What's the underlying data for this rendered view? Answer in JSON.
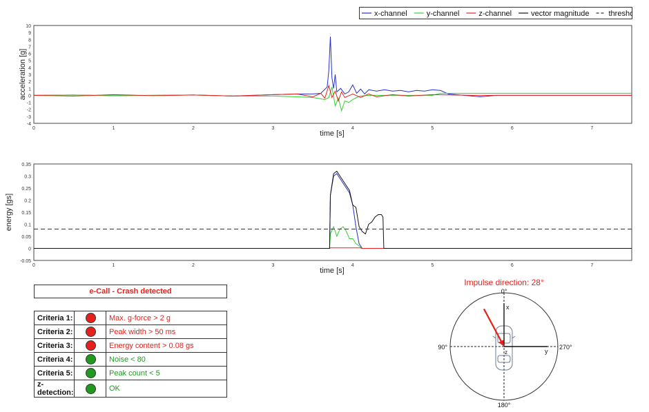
{
  "legend": {
    "items": [
      {
        "label": "x-channel",
        "color": "#2430c8",
        "style": "solid"
      },
      {
        "label": "y-channel",
        "color": "#2fd12f",
        "style": "solid"
      },
      {
        "label": "z-channel",
        "color": "#e4211c",
        "style": "solid"
      },
      {
        "label": "vector magnitude",
        "color": "#111111",
        "style": "solid"
      },
      {
        "label": "threshold",
        "color": "#333333",
        "style": "dashed"
      }
    ]
  },
  "chart_data": [
    {
      "type": "line",
      "xlabel": "time [s]",
      "ylabel": "acceleration [g]",
      "xlim": [
        0,
        7.5
      ],
      "ylim": [
        -4,
        10
      ],
      "xticks": [
        0,
        1,
        2,
        3,
        4,
        5,
        6,
        7
      ],
      "yticks": [
        -4,
        -3,
        -2,
        -1,
        0,
        1,
        2,
        3,
        4,
        5,
        6,
        7,
        8,
        9,
        10
      ],
      "grid": true,
      "series": [
        {
          "name": "x-channel",
          "color": "#2430c8",
          "x": [
            0,
            0.5,
            1,
            1.5,
            2,
            2.5,
            3,
            3.3,
            3.5,
            3.6,
            3.68,
            3.7,
            3.72,
            3.74,
            3.76,
            3.78,
            3.8,
            3.85,
            3.9,
            3.95,
            4.0,
            4.05,
            4.1,
            4.15,
            4.2,
            4.3,
            4.4,
            4.5,
            4.6,
            4.7,
            4.8,
            4.9,
            5.0,
            5.1,
            5.2,
            5.4,
            5.6,
            5.8,
            6.0,
            6.5,
            7.0,
            7.5
          ],
          "y": [
            0,
            0.05,
            -0.05,
            0,
            0.05,
            -0.1,
            0.1,
            0.2,
            0.2,
            0.3,
            1.2,
            3.5,
            8.4,
            2.5,
            1.0,
            3.0,
            0.5,
            1.0,
            0.2,
            0.5,
            1.5,
            0.3,
            0.9,
            0.2,
            0.8,
            0.6,
            0.8,
            0.6,
            0.7,
            0.5,
            0.7,
            0.6,
            0.8,
            0.7,
            0.2,
            0.0,
            -0.2,
            0.0,
            0.0,
            0.0,
            0.0,
            0.0
          ]
        },
        {
          "name": "y-channel",
          "color": "#2fd12f",
          "x": [
            0,
            0.5,
            1,
            1.5,
            2,
            2.5,
            3,
            3.3,
            3.5,
            3.6,
            3.65,
            3.7,
            3.74,
            3.78,
            3.82,
            3.86,
            3.9,
            3.95,
            4.0,
            4.05,
            4.1,
            4.2,
            4.3,
            4.5,
            5.0,
            5.1,
            5.2,
            5.5,
            6.0,
            6.5,
            7.0,
            7.5
          ],
          "y": [
            0,
            0.05,
            -0.05,
            0,
            0.05,
            -0.1,
            -0.1,
            -0.2,
            -0.3,
            -0.5,
            -0.6,
            -0.3,
            1.2,
            -1.5,
            -0.4,
            -2.2,
            -0.8,
            -1.0,
            -0.6,
            -0.3,
            -0.1,
            0.0,
            0.0,
            0.0,
            0.0,
            0.3,
            0.3,
            0.3,
            0.3,
            0.3,
            0.3,
            0.3
          ]
        },
        {
          "name": "z-channel",
          "color": "#e4211c",
          "x": [
            0,
            0.5,
            1,
            1.5,
            2,
            2.5,
            3,
            3.3,
            3.5,
            3.6,
            3.65,
            3.7,
            3.74,
            3.78,
            3.82,
            3.86,
            3.9,
            4.0,
            4.1,
            4.2,
            4.3,
            4.5,
            4.7,
            5.0,
            5.5,
            6.0,
            6.5,
            7.0,
            7.5
          ],
          "y": [
            0,
            -0.1,
            0.1,
            -0.05,
            0.05,
            -0.1,
            0.1,
            0.2,
            -0.2,
            0.3,
            -0.4,
            1.4,
            -0.3,
            0.6,
            -0.8,
            0.5,
            -0.3,
            0.2,
            -0.3,
            0.2,
            -0.2,
            0.1,
            -0.1,
            0.1,
            0.0,
            0.0,
            0.0,
            0.0,
            0.0
          ]
        }
      ]
    },
    {
      "type": "line",
      "xlabel": "time [s]",
      "ylabel": "energy [gs]",
      "xlim": [
        0,
        7.5
      ],
      "ylim": [
        -0.05,
        0.35
      ],
      "xticks": [
        0,
        1,
        2,
        3,
        4,
        5,
        6,
        7
      ],
      "yticks": [
        -0.05,
        0,
        0.05,
        0.1,
        0.15,
        0.2,
        0.25,
        0.3,
        0.35
      ],
      "grid": true,
      "series": [
        {
          "name": "x-channel",
          "color": "#2430c8",
          "x": [
            0,
            3.71,
            3.72,
            3.76,
            3.8,
            3.84,
            3.88,
            3.92,
            3.96,
            4.0,
            4.04,
            4.08,
            4.12,
            4.16,
            7.5
          ],
          "y": [
            0,
            0,
            0.22,
            0.3,
            0.31,
            0.29,
            0.27,
            0.25,
            0.23,
            0.18,
            0.09,
            0.02,
            0.0,
            0.0,
            0.0
          ]
        },
        {
          "name": "y-channel",
          "color": "#2fd12f",
          "x": [
            0,
            3.71,
            3.72,
            3.76,
            3.8,
            3.84,
            3.88,
            3.92,
            3.96,
            4.0,
            4.04,
            4.08,
            4.12,
            7.5
          ],
          "y": [
            0,
            0,
            0.06,
            0.09,
            0.05,
            0.08,
            0.09,
            0.07,
            0.04,
            0.04,
            0.02,
            0.01,
            0.0,
            0.0
          ]
        },
        {
          "name": "z-channel",
          "color": "#e4211c",
          "x": [
            0,
            3.71,
            3.72,
            3.8,
            4.0,
            4.1,
            4.11,
            7.5
          ],
          "y": [
            0,
            0,
            0.002,
            0.002,
            0.002,
            0.002,
            0,
            0
          ]
        },
        {
          "name": "vector magnitude",
          "color": "#111111",
          "x": [
            0,
            3.71,
            3.72,
            3.76,
            3.8,
            3.84,
            3.88,
            3.92,
            3.96,
            4.0,
            4.04,
            4.08,
            4.12,
            4.16,
            4.2,
            4.24,
            4.28,
            4.32,
            4.36,
            4.38,
            4.39,
            7.5
          ],
          "y": [
            0,
            0,
            0.22,
            0.31,
            0.32,
            0.3,
            0.28,
            0.26,
            0.24,
            0.18,
            0.17,
            0.09,
            0.07,
            0.06,
            0.1,
            0.11,
            0.13,
            0.14,
            0.14,
            0.13,
            0.0,
            0.0
          ]
        },
        {
          "name": "threshold",
          "color": "#333333",
          "dashed": true,
          "x": [
            0,
            7.5
          ],
          "y": [
            0.08,
            0.08
          ]
        }
      ]
    }
  ],
  "crash": {
    "status": "e-Call - Crash detected",
    "criteria": [
      {
        "label": "Criteria 1:",
        "status": "red",
        "text": "Max. g-force > 2 g"
      },
      {
        "label": "Criteria 2:",
        "status": "red",
        "text": "Peak width > 50 ms"
      },
      {
        "label": "Criteria 3:",
        "status": "red",
        "text": "Energy content > 0.08 gs"
      },
      {
        "label": "Criteria 4:",
        "status": "green",
        "text": "Noise < 80"
      },
      {
        "label": "Criteria 5:",
        "status": "green",
        "text": "Peak count < 5"
      },
      {
        "label": "z-detection:",
        "status": "green",
        "text": "OK"
      }
    ]
  },
  "impulse": {
    "title": "Impulse direction: 28°",
    "angle_deg": 28,
    "label_0": "0°",
    "label_90": "90°",
    "label_180": "180°",
    "label_270": "270°",
    "axis_x": "x",
    "axis_y": "y",
    "axis_z": "z"
  }
}
